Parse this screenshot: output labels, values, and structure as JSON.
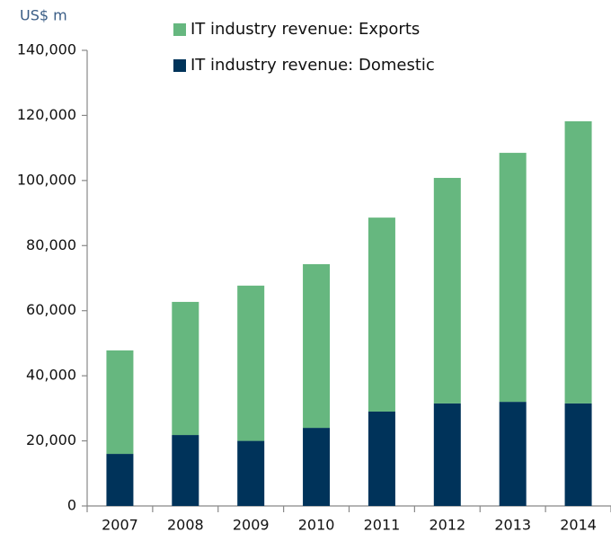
{
  "chart_data": {
    "type": "stacked_bar",
    "y_label": "US$ m",
    "categories": [
      "2007",
      "2008",
      "2009",
      "2010",
      "2011",
      "2012",
      "2013",
      "2014"
    ],
    "series": [
      {
        "name": "IT industry revenue: Domestic",
        "color": "#00335a",
        "values": [
          16000,
          21800,
          20000,
          24000,
          29000,
          31500,
          32000,
          31500
        ]
      },
      {
        "name": "IT industry revenue: Exports",
        "color": "#66b77f",
        "values": [
          31800,
          40900,
          47700,
          50300,
          59600,
          69300,
          76500,
          86700
        ]
      }
    ],
    "ylim": [
      0,
      140000
    ],
    "yticks": [
      0,
      {
        "value": 20000,
        "label": "20,000"
      },
      {
        "value": 40000,
        "label": "40,000"
      },
      {
        "value": 60000,
        "label": "60,000"
      },
      {
        "value": 80000,
        "label": "80,000"
      },
      {
        "value": 100000,
        "label": "100,000"
      },
      {
        "value": 120000,
        "label": "120,000"
      },
      {
        "value": 140000,
        "label": "140,000"
      }
    ]
  }
}
